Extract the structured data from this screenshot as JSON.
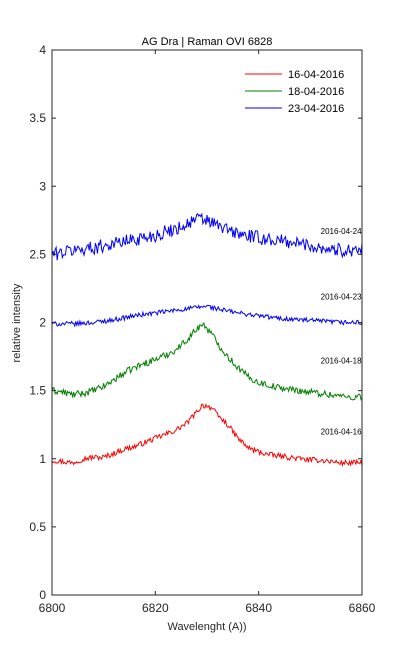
{
  "chart_data": {
    "type": "line",
    "title": "AG Dra | Raman OVI 6828",
    "xlabel": "Wavelenght (A))",
    "ylabel": "relative intensity",
    "xlim": [
      6800,
      6860
    ],
    "ylim": [
      0,
      4
    ],
    "xticks": [
      6800,
      6820,
      6840,
      6860
    ],
    "xtick_labels": [
      "6800",
      "6820",
      "6840",
      "6860"
    ],
    "yticks": [
      0,
      0.5,
      1,
      1.5,
      2,
      2.5,
      3,
      3.5,
      4
    ],
    "ytick_labels": [
      "0",
      "0.5",
      "1",
      "1.5",
      "2",
      "2.5",
      "3",
      "3.5",
      "4"
    ],
    "grid": false,
    "legend_position": "top-right",
    "legend": [
      {
        "label": "16-04-2016",
        "color": "#ff0000"
      },
      {
        "label": "18-04-2016",
        "color": "#007f00"
      },
      {
        "label": "23-04-2016",
        "color": "#0000ff"
      }
    ],
    "annotations": [
      {
        "text": "2016-04-24",
        "x": 6852,
        "y": 2.67
      },
      {
        "text": "2016-04-23",
        "x": 6852,
        "y": 2.19
      },
      {
        "text": "2016-04-18",
        "x": 6852,
        "y": 1.72
      },
      {
        "text": "2016-04-16",
        "x": 6852,
        "y": 1.2
      }
    ],
    "series": [
      {
        "color": "#ff0000",
        "x": [
          6800,
          6802,
          6804,
          6806,
          6808,
          6810,
          6812,
          6814,
          6816,
          6818,
          6820,
          6822,
          6824,
          6826,
          6828,
          6829,
          6830,
          6831,
          6832,
          6834,
          6836,
          6838,
          6840,
          6842,
          6844,
          6846,
          6848,
          6850,
          6852,
          6854,
          6856,
          6858,
          6860
        ],
        "y": [
          0.99,
          0.98,
          0.97,
          1.0,
          1.01,
          1.01,
          1.04,
          1.07,
          1.09,
          1.12,
          1.15,
          1.18,
          1.21,
          1.26,
          1.34,
          1.39,
          1.39,
          1.37,
          1.32,
          1.25,
          1.15,
          1.08,
          1.05,
          1.03,
          1.02,
          1.01,
          1.0,
          0.99,
          0.99,
          0.98,
          0.97,
          0.97,
          0.97
        ]
      },
      {
        "color": "#007f00",
        "x": [
          6800,
          6802,
          6804,
          6806,
          6808,
          6810,
          6812,
          6814,
          6816,
          6818,
          6820,
          6822,
          6824,
          6826,
          6828,
          6829,
          6830,
          6831,
          6832,
          6834,
          6836,
          6838,
          6840,
          6842,
          6844,
          6846,
          6848,
          6850,
          6852,
          6854,
          6856,
          6858,
          6860
        ],
        "y": [
          1.5,
          1.49,
          1.47,
          1.48,
          1.5,
          1.53,
          1.58,
          1.63,
          1.67,
          1.7,
          1.73,
          1.76,
          1.8,
          1.87,
          1.95,
          1.99,
          1.96,
          1.91,
          1.85,
          1.75,
          1.67,
          1.6,
          1.56,
          1.54,
          1.52,
          1.51,
          1.5,
          1.49,
          1.48,
          1.47,
          1.46,
          1.45,
          1.46
        ]
      },
      {
        "color": "#0000ff",
        "x": [
          6800,
          6804,
          6808,
          6812,
          6816,
          6820,
          6824,
          6828,
          6830,
          6832,
          6836,
          6840,
          6844,
          6848,
          6852,
          6856,
          6860
        ],
        "y": [
          1.99,
          1.99,
          2.0,
          2.02,
          2.05,
          2.07,
          2.09,
          2.11,
          2.12,
          2.1,
          2.07,
          2.05,
          2.03,
          2.02,
          2.01,
          2.0,
          2.0
        ]
      },
      {
        "color": "#0000ff",
        "x": [
          6800,
          6804,
          6808,
          6812,
          6816,
          6820,
          6824,
          6826,
          6828,
          6830,
          6832,
          6834,
          6836,
          6840,
          6844,
          6848,
          6852,
          6856,
          6860
        ],
        "y": [
          2.5,
          2.53,
          2.55,
          2.58,
          2.61,
          2.64,
          2.69,
          2.72,
          2.76,
          2.75,
          2.71,
          2.68,
          2.65,
          2.62,
          2.6,
          2.58,
          2.55,
          2.53,
          2.54
        ]
      }
    ]
  }
}
